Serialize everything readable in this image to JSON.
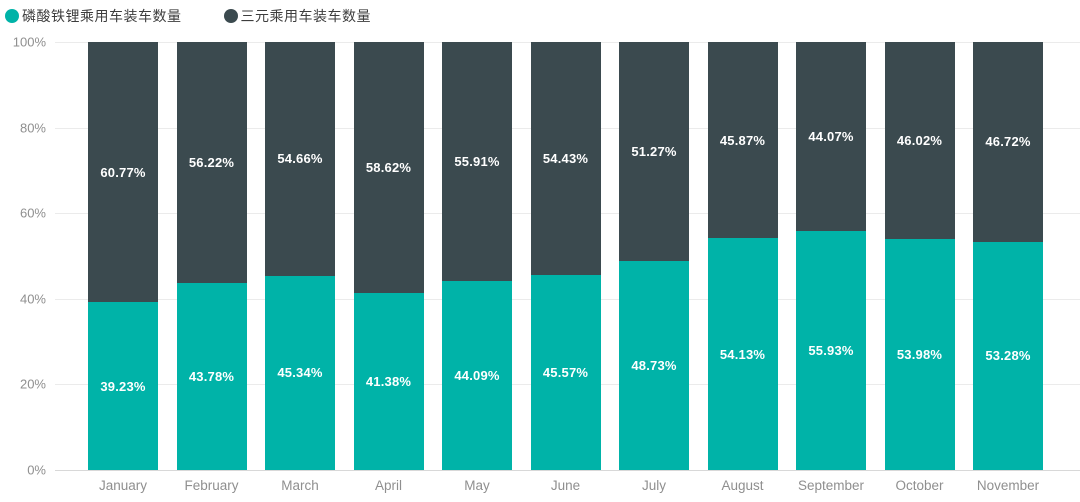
{
  "legend": {
    "items": [
      {
        "label": "磷酸铁锂乘用车装车数量",
        "color": "#00b3a8"
      },
      {
        "label": "三元乘用车装车数量",
        "color": "#3b4a4f"
      }
    ]
  },
  "chart_data": {
    "type": "bar",
    "subtype": "stacked-100-percent",
    "title": "",
    "xlabel": "",
    "ylabel": "",
    "ylim": [
      0,
      100
    ],
    "y_ticks": [
      "0%",
      "20%",
      "40%",
      "60%",
      "80%",
      "100%"
    ],
    "grid": true,
    "legend_position": "top-left",
    "categories": [
      "January",
      "February",
      "March",
      "April",
      "May",
      "June",
      "July",
      "August",
      "September",
      "October",
      "November"
    ],
    "series": [
      {
        "name": "磷酸铁锂乘用车装车数量",
        "color": "#00b3a8",
        "stack_order": "bottom",
        "values": [
          39.23,
          43.78,
          45.34,
          41.38,
          44.09,
          45.57,
          48.73,
          54.13,
          55.93,
          53.98,
          53.28
        ]
      },
      {
        "name": "三元乘用车装车数量",
        "color": "#3b4a4f",
        "stack_order": "top",
        "values": [
          60.77,
          56.22,
          54.66,
          58.62,
          55.91,
          54.43,
          51.27,
          45.87,
          44.07,
          46.02,
          46.72
        ]
      }
    ],
    "value_label_format": "0.00%"
  }
}
